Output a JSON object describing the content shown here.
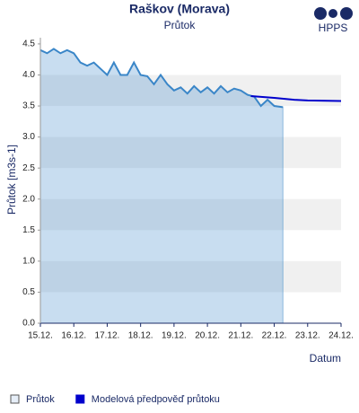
{
  "chart_data": {
    "type": "line",
    "title": "Raškov (Morava)",
    "subtitle": "Průtok",
    "logo": "HPPS",
    "y_label": "Průtok [m3s-1]",
    "x_label": "Datum",
    "xlim": [
      15,
      24
    ],
    "ylim": [
      0,
      4.6
    ],
    "xticks": [
      {
        "value": 15,
        "label": "15.12."
      },
      {
        "value": 16,
        "label": "16.12."
      },
      {
        "value": 17,
        "label": "17.12."
      },
      {
        "value": 18,
        "label": "18.12."
      },
      {
        "value": 19,
        "label": "19.12."
      },
      {
        "value": 20,
        "label": "20.12."
      },
      {
        "value": 21,
        "label": "21.12."
      },
      {
        "value": 22,
        "label": "22.12."
      },
      {
        "value": 23,
        "label": "23.12."
      },
      {
        "value": 24,
        "label": "24.12."
      }
    ],
    "yticks": [
      {
        "value": 0,
        "label": "0.0"
      },
      0.5,
      {
        "value": 1,
        "label": "1.0"
      },
      1.5,
      {
        "value": 2,
        "label": "2.0"
      },
      2.5,
      {
        "value": 3,
        "label": "3.0"
      },
      3.5,
      {
        "value": 4,
        "label": "4.0"
      },
      4.5
    ],
    "grid": "bands",
    "series": [
      {
        "name": "Průtok",
        "color": "#3a86c8",
        "fill": true,
        "x": [
          15.0,
          15.2,
          15.4,
          15.6,
          15.8,
          16.0,
          16.2,
          16.4,
          16.6,
          16.8,
          17.0,
          17.2,
          17.4,
          17.6,
          17.8,
          18.0,
          18.2,
          18.4,
          18.6,
          18.8,
          19.0,
          19.2,
          19.4,
          19.6,
          19.8,
          20.0,
          20.2,
          20.4,
          20.6,
          20.8,
          21.0,
          21.2,
          21.4,
          21.6,
          21.8,
          22.0,
          22.26
        ],
        "values": [
          4.4,
          4.35,
          4.42,
          4.35,
          4.4,
          4.35,
          4.2,
          4.15,
          4.2,
          4.1,
          4.0,
          4.2,
          4.0,
          4.0,
          4.2,
          4.0,
          3.98,
          3.85,
          4.0,
          3.85,
          3.75,
          3.8,
          3.7,
          3.82,
          3.72,
          3.8,
          3.7,
          3.82,
          3.72,
          3.78,
          3.75,
          3.68,
          3.65,
          3.5,
          3.6,
          3.5,
          3.48
        ]
      },
      {
        "name": "Modelová předpověď průtoku",
        "color": "#0000cc",
        "fill": false,
        "x": [
          21.3,
          22.0,
          22.6,
          23.0,
          24.0
        ],
        "values": [
          3.66,
          3.63,
          3.6,
          3.59,
          3.58
        ]
      }
    ]
  }
}
